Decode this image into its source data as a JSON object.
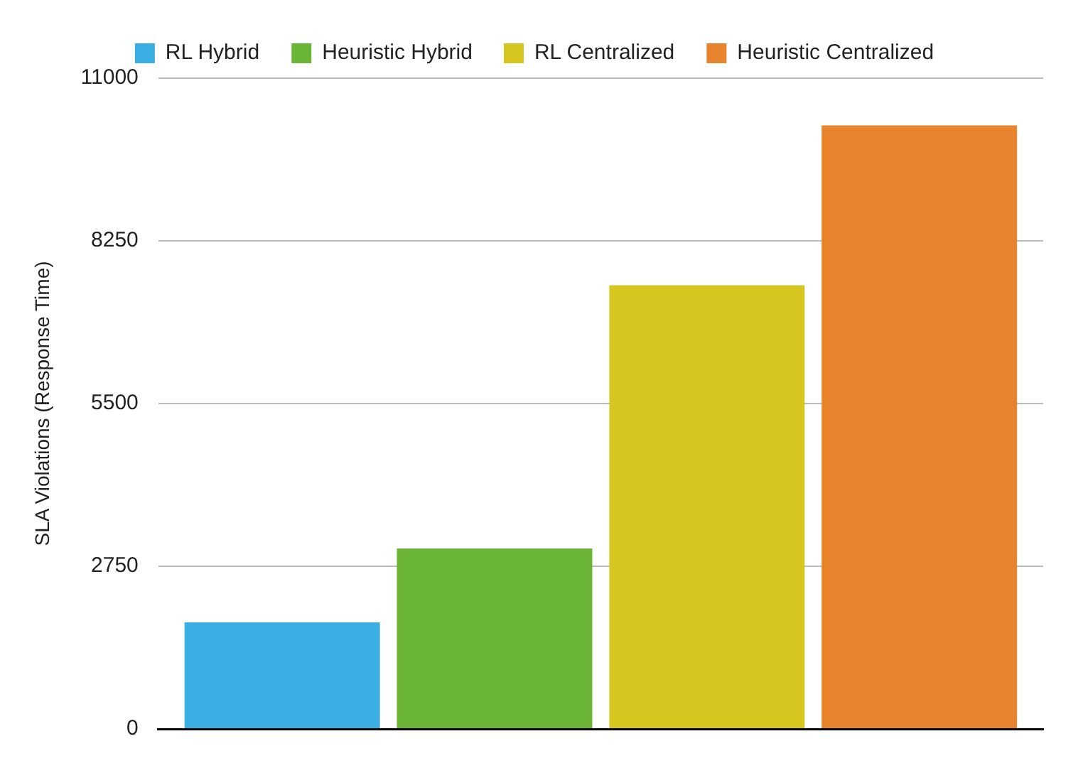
{
  "chart_data": {
    "type": "bar",
    "ylabel": "SLA Violations (Response Time)",
    "categories": [
      null
    ],
    "series": [
      {
        "name": "RL Hybrid",
        "color": "#3aaee2",
        "values": [
          1800
        ]
      },
      {
        "name": "Heuristic Hybrid",
        "color": "#6bb536",
        "values": [
          3050
        ]
      },
      {
        "name": "RL Centralized",
        "color": "#d7c620",
        "values": [
          7500
        ]
      },
      {
        "name": "Heuristic Centralized",
        "color": "#e6832c",
        "values": [
          10200
        ]
      }
    ],
    "ylim": [
      0,
      11000
    ],
    "yticks": [
      0,
      2750,
      5500,
      8250,
      11000
    ],
    "grid": "y",
    "legend": "top"
  }
}
